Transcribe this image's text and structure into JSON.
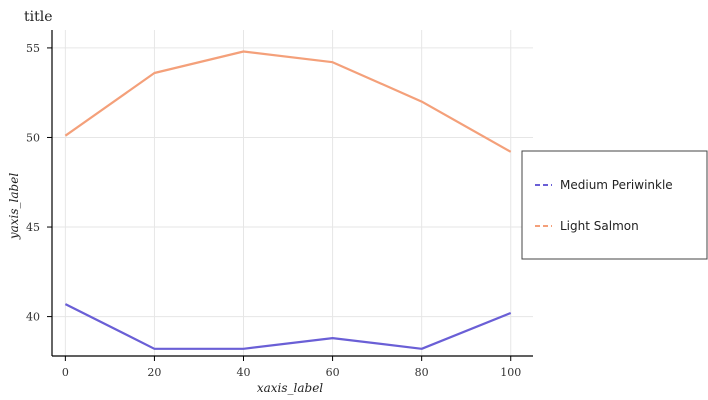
{
  "chart_data": {
    "type": "line",
    "title": "title",
    "xlabel": "xaxis_label",
    "ylabel": "yaxis_label",
    "xlim": [
      -3,
      105
    ],
    "ylim": [
      37.8,
      56.0
    ],
    "xticks": [
      0,
      20,
      40,
      60,
      80,
      100
    ],
    "yticks": [
      40,
      45,
      50,
      55
    ],
    "x": [
      0,
      20,
      40,
      60,
      80,
      100
    ],
    "series": [
      {
        "name": "Medium Periwinkle",
        "color": "#6a5fd6",
        "values": [
          40.7,
          38.2,
          38.2,
          38.8,
          38.2,
          40.2
        ]
      },
      {
        "name": "Light Salmon",
        "color": "#f4a07a",
        "values": [
          50.1,
          53.6,
          54.8,
          54.2,
          52.0,
          49.2
        ]
      }
    ],
    "grid": true,
    "legend_position": "right"
  }
}
